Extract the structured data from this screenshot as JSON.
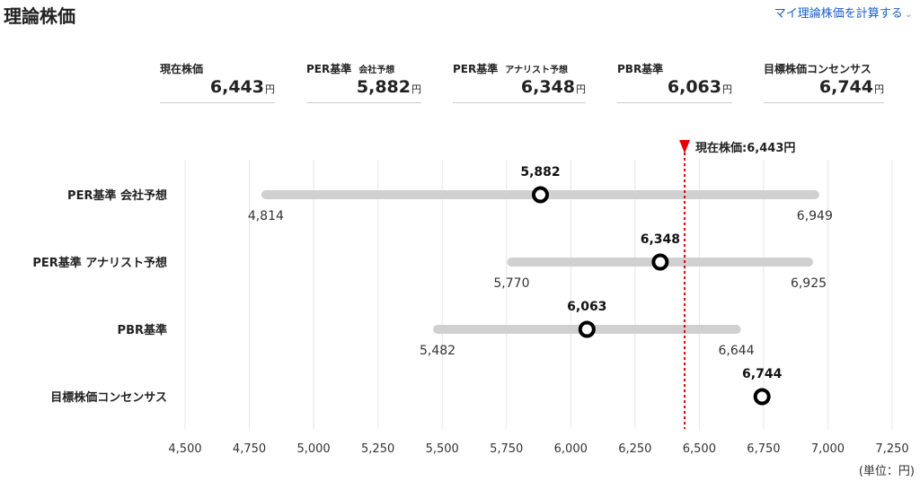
{
  "header": {
    "title": "理論株価",
    "calc_link": "マイ理論株価を計算する",
    "chevron_icon": "chevron-down-icon"
  },
  "summary": [
    {
      "label": "現在株価",
      "sub": "",
      "value": "6,443",
      "unit": "円"
    },
    {
      "label": "PER基準",
      "sub": "会社予想",
      "value": "5,882",
      "unit": "円"
    },
    {
      "label": "PER基準",
      "sub": "アナリスト予想",
      "value": "6,348",
      "unit": "円"
    },
    {
      "label": "PBR基準",
      "sub": "",
      "value": "6,063",
      "unit": "円"
    },
    {
      "label": "目標株価コンセンサス",
      "sub": "",
      "value": "6,744",
      "unit": "円"
    }
  ],
  "chart_data": {
    "type": "range-dot",
    "xlim": [
      4500,
      7250
    ],
    "x_ticks": [
      4500,
      4750,
      5000,
      5250,
      5500,
      5750,
      6000,
      6250,
      6500,
      6750,
      7000,
      7250
    ],
    "x_tick_labels": [
      "4,500",
      "4,750",
      "5,000",
      "5,250",
      "5,500",
      "5,750",
      "6,000",
      "6,250",
      "6,500",
      "6,750",
      "7,000",
      "7,250"
    ],
    "unit_label": "(単位：円)",
    "grid": true,
    "current_price": {
      "value": 6443,
      "label": "現在株価:6,443円"
    },
    "rows": [
      {
        "name": "PER基準 会社予想",
        "low": 4814,
        "high": 6949,
        "value": 5882,
        "low_label": "4,814",
        "high_label": "6,949",
        "value_label": "5,882"
      },
      {
        "name": "PER基準 アナリスト予想",
        "low": 5770,
        "high": 6925,
        "value": 6348,
        "low_label": "5,770",
        "high_label": "6,925",
        "value_label": "6,348"
      },
      {
        "name": "PBR基準",
        "low": 5482,
        "high": 6644,
        "value": 6063,
        "low_label": "5,482",
        "high_label": "6,644",
        "value_label": "6,063"
      },
      {
        "name": "目標株価コンセンサス",
        "value": 6744,
        "value_label": "6,744"
      }
    ],
    "colors": {
      "range_bar": "#d0d0d0",
      "marker": "#000000",
      "current_line": "#e60000",
      "grid": "#e6e6e6"
    }
  }
}
